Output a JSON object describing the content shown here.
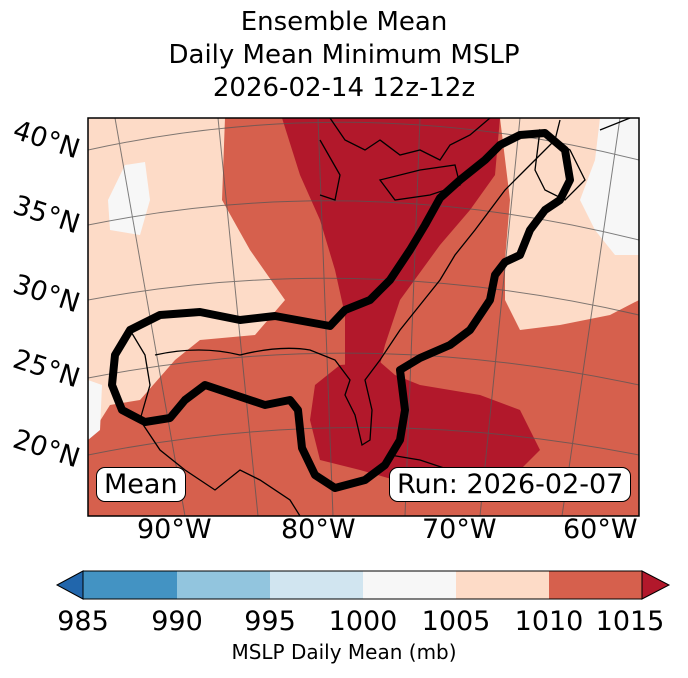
{
  "title": {
    "line1": "Ensemble Mean",
    "line2": "Daily Mean Minimum MSLP",
    "line3": "2026-02-14 12z-12z"
  },
  "lat_labels": [
    "40°N",
    "35°N",
    "30°N",
    "25°N",
    "20°N"
  ],
  "lon_labels": [
    "90°W",
    "80°W",
    "70°W",
    "60°W"
  ],
  "panel_labels": {
    "left": "Mean",
    "right": "Run: 2026-02-07"
  },
  "colorbar": {
    "label": "MSLP Daily Mean (mb)",
    "ticks": [
      "985",
      "990",
      "995",
      "1000",
      "1005",
      "1010",
      "1015"
    ],
    "under_color": "#2166ac",
    "bins": [
      {
        "range": "985-990",
        "color": "#4393c3"
      },
      {
        "range": "990-995",
        "color": "#92c5de"
      },
      {
        "range": "995-1000",
        "color": "#d1e5f0"
      },
      {
        "range": "1000-1005",
        "color": "#f7f7f7"
      },
      {
        "range": "1005-1010",
        "color": "#fddbc7"
      },
      {
        "range": "1010-1015",
        "color": "#d6604d"
      }
    ],
    "over_color": "#b2182b"
  }
}
